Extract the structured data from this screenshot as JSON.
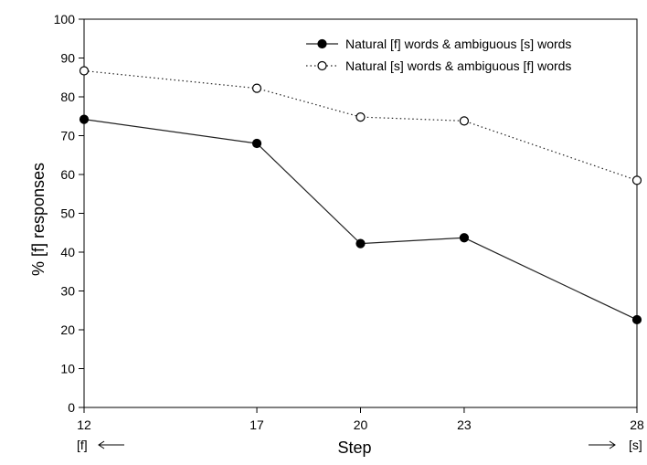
{
  "chart_data": {
    "type": "line",
    "xlabel": "Step",
    "ylabel": "% [f] responses",
    "xlim": [
      12,
      28
    ],
    "ylim": [
      0,
      100
    ],
    "x_ticks": [
      12,
      17,
      20,
      23,
      28
    ],
    "y_ticks": [
      0,
      10,
      20,
      30,
      40,
      50,
      60,
      70,
      80,
      90,
      100
    ],
    "grid": false,
    "legend_position": "top-right",
    "end_labels": {
      "left": "[f]",
      "right": "[s]"
    },
    "series": [
      {
        "name": "Natural [f] words & ambiguous [s] words",
        "marker": "filled-circle",
        "line": "solid",
        "x": [
          12,
          17,
          20,
          23,
          28
        ],
        "y": [
          74.2,
          68.0,
          42.2,
          43.7,
          22.6
        ]
      },
      {
        "name": "Natural [s] words & ambiguous [f] words",
        "marker": "open-circle",
        "line": "dotted",
        "x": [
          12,
          17,
          20,
          23,
          28
        ],
        "y": [
          86.7,
          82.2,
          74.8,
          73.8,
          58.5
        ]
      }
    ]
  }
}
